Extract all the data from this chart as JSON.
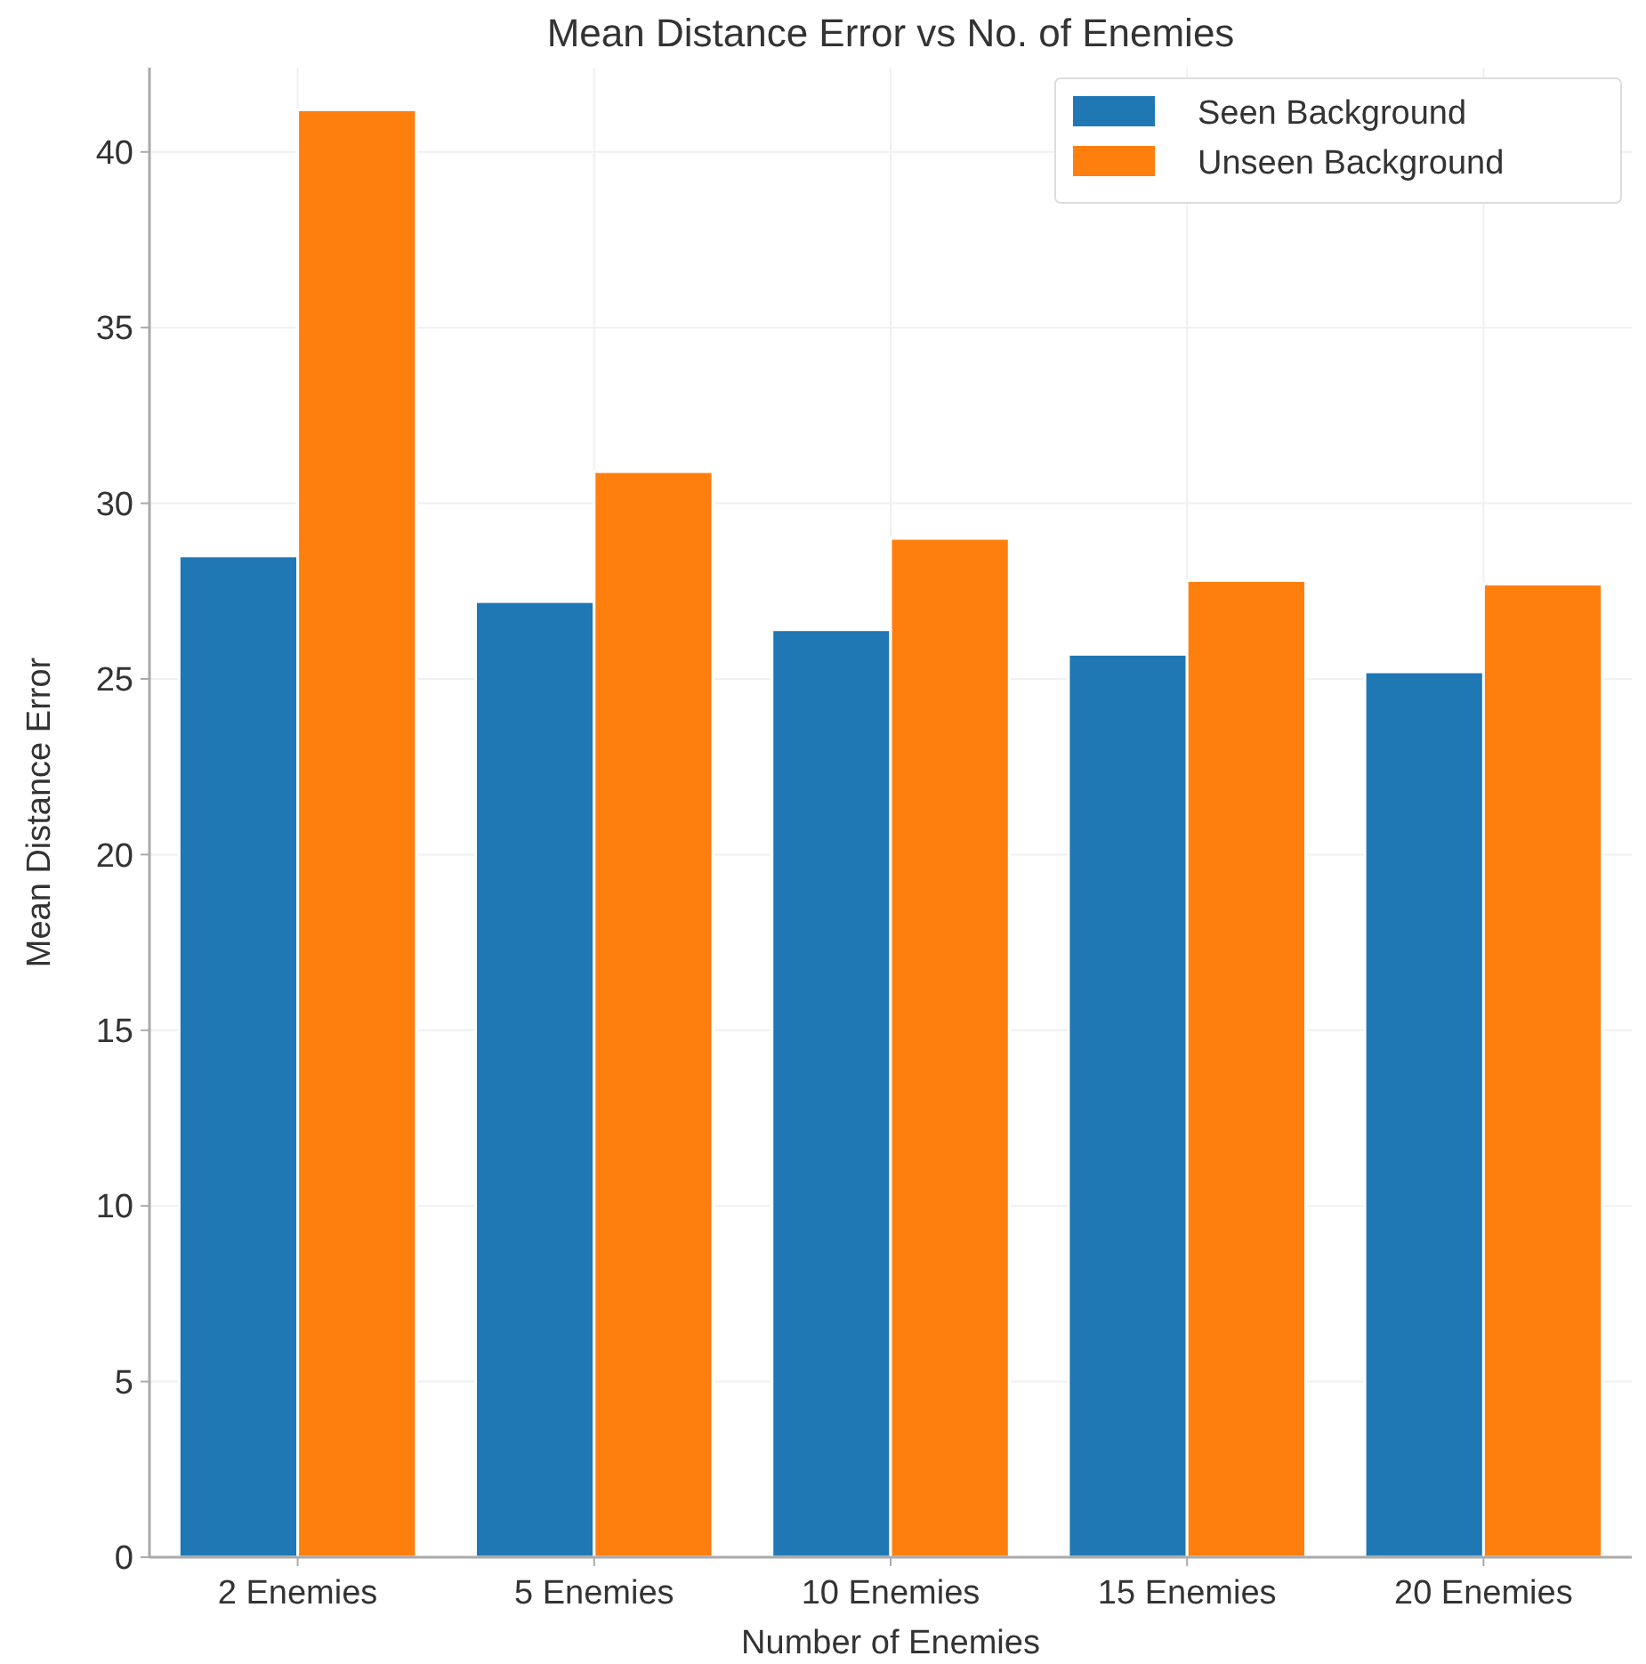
{
  "chart_data": {
    "type": "bar",
    "title": "Mean Distance Error vs No. of Enemies",
    "xlabel": "Number of Enemies",
    "ylabel": "Mean Distance Error",
    "categories": [
      "2 Enemies",
      "5 Enemies",
      "10 Enemies",
      "15 Enemies",
      "20 Enemies"
    ],
    "series": [
      {
        "name": "Seen Background",
        "color": "#1f77b4",
        "values": [
          28.5,
          27.2,
          26.4,
          25.7,
          25.2
        ]
      },
      {
        "name": "Unseen Background",
        "color": "#ff7f0e",
        "values": [
          41.2,
          30.9,
          29.0,
          27.8,
          27.7
        ]
      }
    ],
    "ylim": [
      0,
      42.4
    ],
    "yticks": [
      0,
      5,
      10,
      15,
      20,
      25,
      30,
      35,
      40
    ],
    "grid": true,
    "legend": "top right"
  }
}
